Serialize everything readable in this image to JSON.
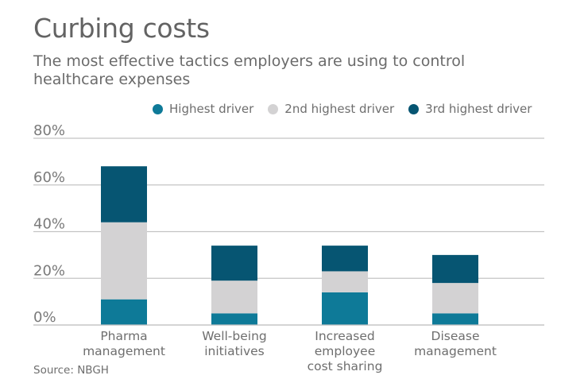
{
  "title": "Curbing costs",
  "subtitle": "The most effective tactics employers are using to control healthcare expenses",
  "source": "Source: NBGH",
  "legend": [
    {
      "label": "Highest driver",
      "color": "#0e7a98"
    },
    {
      "label": "2nd highest driver",
      "color": "#d3d2d3"
    },
    {
      "label": "3rd highest driver",
      "color": "#065572"
    }
  ],
  "chart_data": {
    "type": "bar",
    "stacked": true,
    "title": "Curbing costs",
    "subtitle": "The most effective tactics employers are using to control healthcare expenses",
    "xlabel": "",
    "ylabel": "",
    "ylim": [
      0,
      80
    ],
    "yticks": [
      0,
      20,
      40,
      60,
      80
    ],
    "ytick_labels": [
      "0%",
      "20%",
      "40%",
      "60%",
      "80%"
    ],
    "grid": true,
    "legend_position": "top-right",
    "categories": [
      [
        "Pharma",
        "management"
      ],
      [
        "Well-being",
        "initiatives"
      ],
      [
        "Increased",
        "employee",
        "cost sharing"
      ],
      [
        "Disease",
        "management"
      ]
    ],
    "series": [
      {
        "name": "Highest driver",
        "color": "#0e7a98",
        "values": [
          11,
          5,
          14,
          5
        ]
      },
      {
        "name": "2nd highest driver",
        "color": "#d3d2d3",
        "values": [
          33,
          14,
          9,
          13
        ]
      },
      {
        "name": "3rd highest driver",
        "color": "#065572",
        "values": [
          24,
          15,
          11,
          12
        ]
      }
    ],
    "source": "Source: NBGH"
  }
}
